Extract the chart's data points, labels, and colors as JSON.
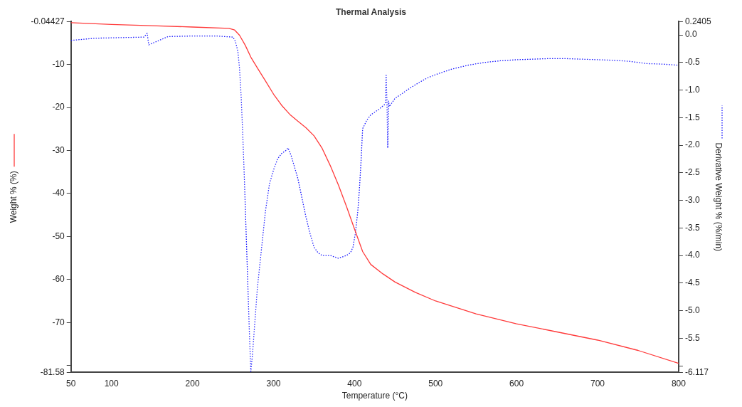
{
  "chart_data": {
    "type": "line",
    "title": "Thermal Analysis",
    "xlabel": "Temperature (°C)",
    "ylabel": "Weight % (%)",
    "y2label": "Derivative Weight % (%/min)",
    "xlim": [
      50,
      800
    ],
    "xticks": [
      50,
      100,
      200,
      300,
      400,
      500,
      600,
      700,
      800
    ],
    "ylim": [
      -81.58,
      -0.04427
    ],
    "yticks": [
      -0.04427,
      -10,
      -20,
      -30,
      -40,
      -50,
      -60,
      -70,
      {
        "value": -80,
        "label": null
      },
      -81.58
    ],
    "y2lim": [
      -6.117,
      0.2405
    ],
    "y2ticks": [
      0.2405,
      {
        "value": 0,
        "label": "0.0"
      },
      -0.5,
      {
        "value": -1,
        "label": "-1.0"
      },
      -1.5,
      {
        "value": -2,
        "label": "-2.0"
      },
      -2.5,
      {
        "value": -3,
        "label": "-3.0"
      },
      -3.5,
      {
        "value": -4,
        "label": "-4.0"
      },
      -4.5,
      {
        "value": -5,
        "label": "-5.0"
      },
      -5.5,
      {
        "value": -6,
        "label": null
      },
      -6.117
    ],
    "grid": false,
    "legend": false,
    "marker": "none",
    "series": [
      {
        "color": "#ff3b3b",
        "line_style": "solid",
        "x": [
          50,
          100,
          150,
          200,
          245,
          252,
          258,
          265,
          272,
          280,
          290,
          300,
          310,
          320,
          330,
          340,
          350,
          360,
          370,
          380,
          390,
          400,
          410,
          420,
          435,
          450,
          475,
          500,
          550,
          600,
          650,
          700,
          750,
          800
        ],
        "values": [
          -0.3,
          -0.7,
          -1.0,
          -1.3,
          -1.6,
          -2.0,
          -3.2,
          -5.5,
          -8.3,
          -10.8,
          -13.8,
          -16.9,
          -19.5,
          -21.6,
          -23.2,
          -24.7,
          -26.6,
          -29.5,
          -33.5,
          -38.0,
          -43.0,
          -48.3,
          -53.5,
          -56.5,
          -58.7,
          -60.6,
          -63.0,
          -65.0,
          -68.0,
          -70.3,
          -72.2,
          -74.1,
          -76.5,
          -79.5
        ]
      },
      {
        "color": "#1a1aff",
        "line_style": "dotted",
        "axis": "y2",
        "x": [
          50,
          80,
          110,
          140,
          144,
          146,
          170,
          200,
          230,
          250,
          253,
          256,
          258,
          260,
          262,
          264,
          266,
          268,
          270,
          272,
          274,
          277,
          280,
          285,
          290,
          295,
          300,
          305,
          310,
          315,
          318,
          322,
          326,
          330,
          335,
          340,
          345,
          350,
          355,
          360,
          370,
          380,
          390,
          395,
          398,
          401,
          404,
          406,
          408,
          410,
          415,
          420,
          430,
          438,
          439,
          440,
          441,
          442,
          443,
          450,
          460,
          470,
          480,
          490,
          500,
          520,
          540,
          560,
          580,
          600,
          620,
          640,
          660,
          680,
          700,
          720,
          740,
          760,
          780,
          800
        ],
        "values": [
          -0.1,
          -0.06,
          -0.05,
          -0.04,
          0.03,
          -0.18,
          -0.03,
          -0.02,
          -0.02,
          -0.04,
          -0.12,
          -0.3,
          -0.6,
          -1.1,
          -1.8,
          -2.6,
          -3.5,
          -4.4,
          -5.3,
          -6.1,
          -5.8,
          -5.2,
          -4.6,
          -3.9,
          -3.2,
          -2.7,
          -2.45,
          -2.25,
          -2.15,
          -2.1,
          -2.05,
          -2.2,
          -2.4,
          -2.6,
          -2.95,
          -3.3,
          -3.6,
          -3.85,
          -3.95,
          -4.0,
          -4.0,
          -4.05,
          -4.0,
          -3.95,
          -3.85,
          -3.6,
          -3.2,
          -2.8,
          -2.3,
          -1.7,
          -1.55,
          -1.45,
          -1.35,
          -1.25,
          -0.73,
          -1.2,
          -2.05,
          -1.2,
          -1.3,
          -1.15,
          -1.05,
          -0.95,
          -0.86,
          -0.78,
          -0.72,
          -0.62,
          -0.55,
          -0.5,
          -0.47,
          -0.45,
          -0.44,
          -0.43,
          -0.43,
          -0.44,
          -0.45,
          -0.46,
          -0.48,
          -0.52,
          -0.53,
          -0.55
        ]
      }
    ]
  }
}
